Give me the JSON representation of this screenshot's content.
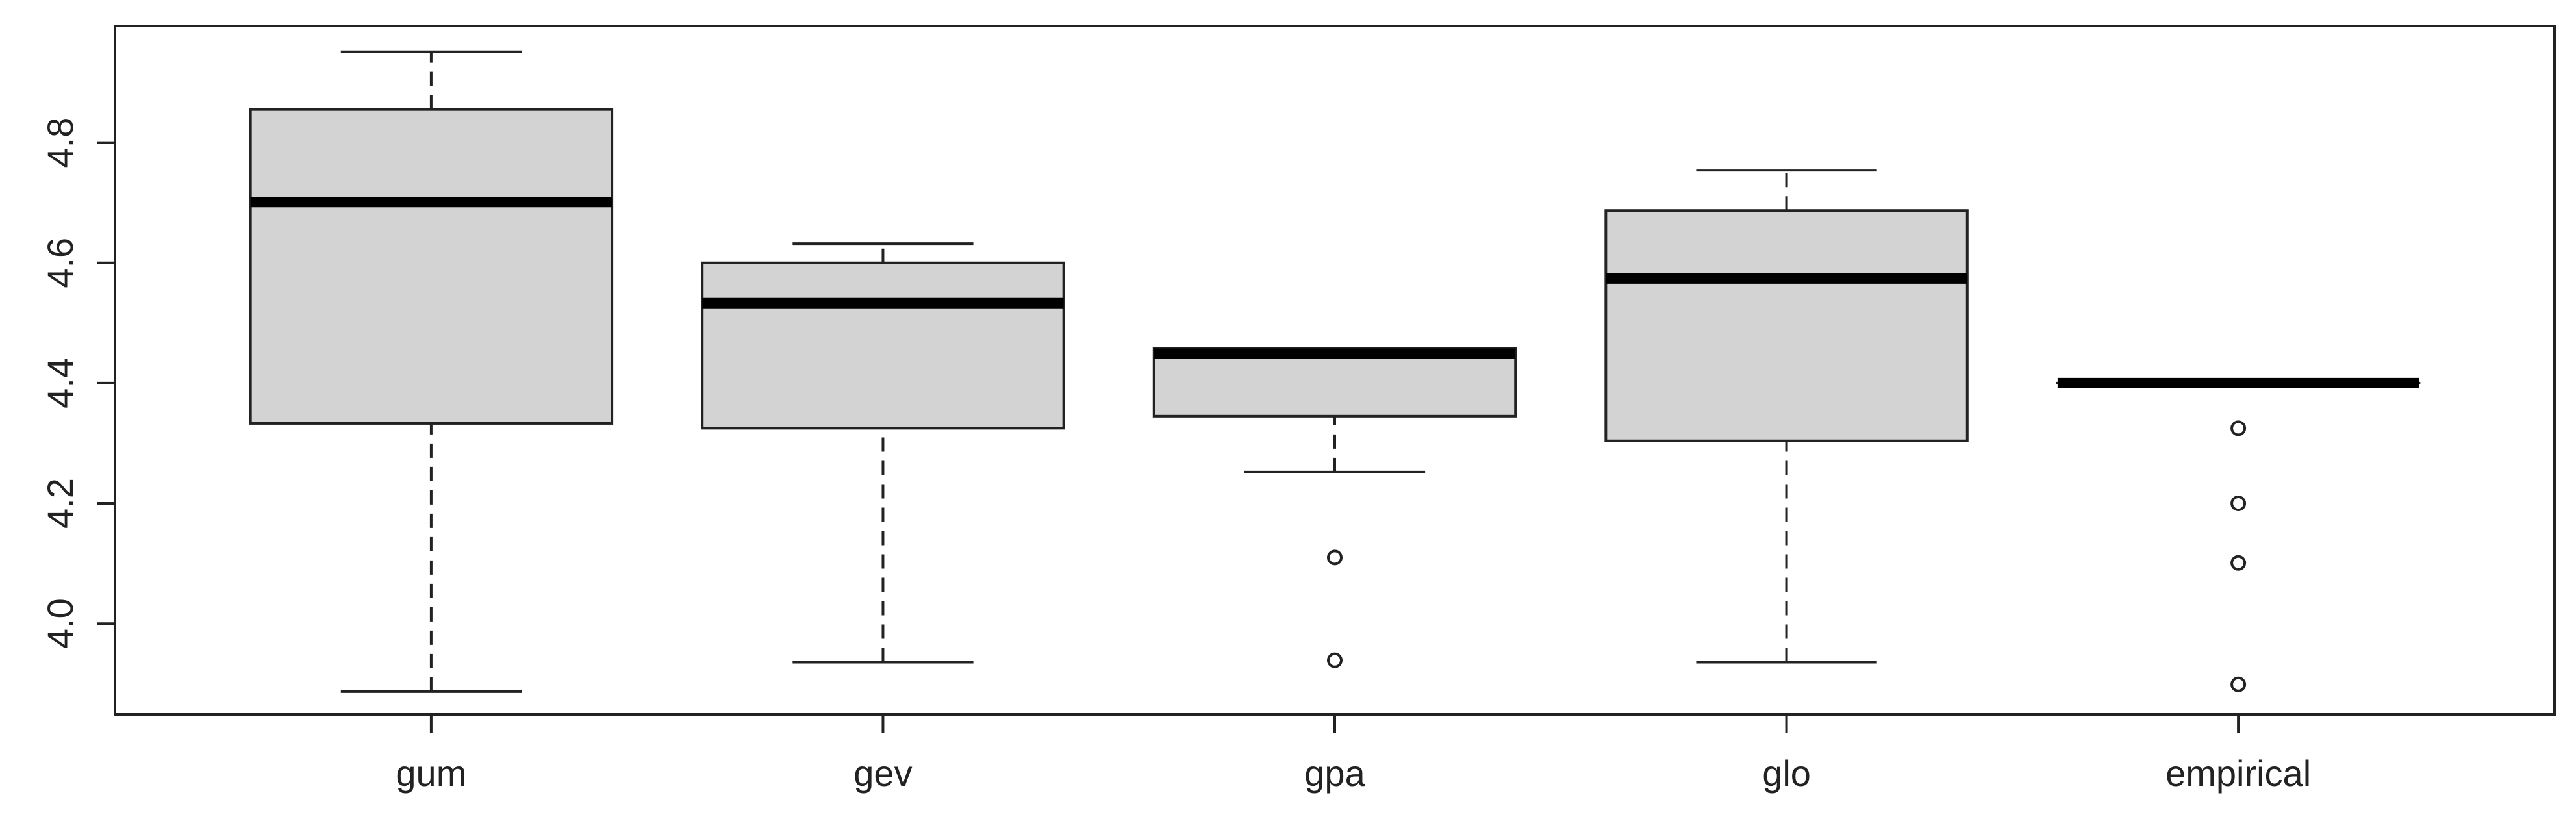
{
  "chart_data": {
    "type": "boxplot",
    "categories": [
      "gum",
      "gev",
      "gpa",
      "glo",
      "empirical"
    ],
    "min": [
      3.887,
      3.936,
      4.252,
      3.936,
      4.4
    ],
    "q1": [
      4.333,
      4.325,
      4.345,
      4.304,
      4.4
    ],
    "median": [
      4.701,
      4.533,
      4.449,
      4.574,
      4.4
    ],
    "q3": [
      4.855,
      4.6,
      4.458,
      4.687,
      4.4
    ],
    "max": [
      4.951,
      4.632,
      4.458,
      4.754,
      4.4
    ],
    "outliers": [
      [],
      [],
      [
        4.11,
        3.939
      ],
      [],
      [
        4.325,
        4.2,
        4.101,
        3.899
      ]
    ],
    "color": "#d3d3d3",
    "ylim": [
      3.849,
      4.994
    ],
    "yticks": [
      {
        "value": 4.0,
        "label": "4.0"
      },
      {
        "value": 4.2,
        "label": "4.2"
      },
      {
        "value": 4.4,
        "label": "4.4"
      },
      {
        "value": 4.6,
        "label": "4.6"
      },
      {
        "value": 4.8,
        "label": "4.8"
      }
    ]
  }
}
